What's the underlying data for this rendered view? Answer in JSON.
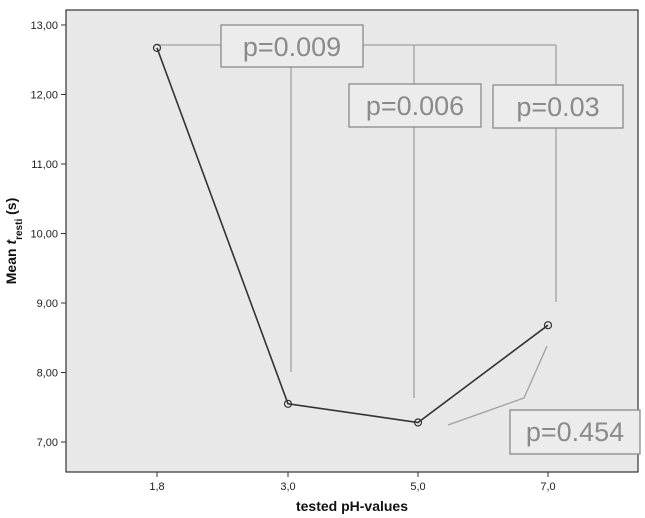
{
  "chart_data": {
    "type": "line",
    "xlabel": "tested pH-values",
    "ylabel_prefix": "Mean ",
    "ylabel_var": "t",
    "ylabel_sub": "resti",
    "ylabel_suffix": " (s)",
    "categories": [
      "1,8",
      "3,0",
      "5,0",
      "7,0"
    ],
    "values": [
      12.67,
      7.55,
      7.28,
      8.68
    ],
    "ylim": [
      6.5,
      13.1
    ],
    "yticks": [
      "7,00",
      "8,00",
      "9,00",
      "10,00",
      "11,00",
      "12,00",
      "13,00"
    ],
    "grid": false,
    "plot_background": "#e8e8e8",
    "line_color": "#333333",
    "annotation_color": "#8a8a8a",
    "annotations": [
      {
        "label": "p=0.009"
      },
      {
        "label": "p=0.006"
      },
      {
        "label": "p=0.03"
      },
      {
        "label": "p=0.454"
      }
    ]
  }
}
